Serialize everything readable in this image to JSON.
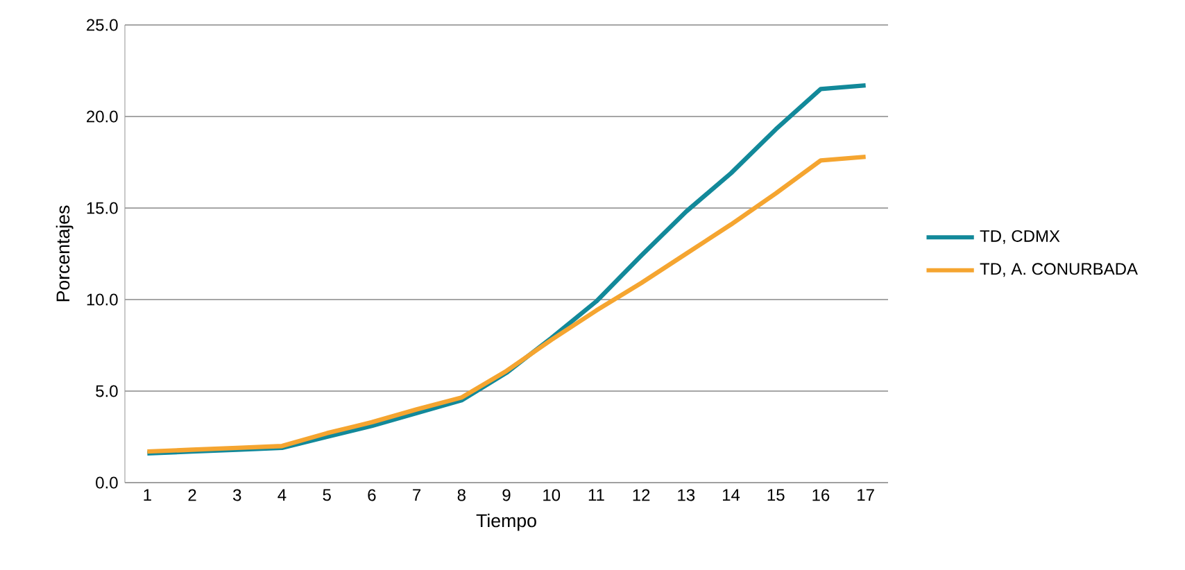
{
  "chart_data": {
    "type": "line",
    "xlabel": "Tiempo",
    "ylabel": "Porcentajes",
    "categories": [
      "1",
      "2",
      "3",
      "4",
      "5",
      "6",
      "7",
      "8",
      "9",
      "10",
      "11",
      "12",
      "13",
      "14",
      "15",
      "16",
      "17"
    ],
    "series": [
      {
        "name": "TD, CDMX",
        "color": "#12899a",
        "values": [
          1.6,
          1.7,
          1.8,
          1.9,
          2.5,
          3.1,
          3.8,
          4.5,
          6.0,
          7.9,
          9.9,
          12.4,
          14.8,
          16.9,
          19.3,
          21.5,
          21.7
        ]
      },
      {
        "name": "TD, A. CONURBADA",
        "color": "#f5a530",
        "values": [
          1.7,
          1.8,
          1.9,
          2.0,
          2.7,
          3.3,
          4.0,
          4.65,
          6.1,
          7.8,
          9.4,
          10.9,
          12.5,
          14.1,
          15.8,
          17.6,
          17.8
        ]
      }
    ],
    "ylim": [
      0,
      25
    ],
    "yticks": [
      {
        "value": 0,
        "label": "0.0"
      },
      {
        "value": 5,
        "label": "5.0"
      },
      {
        "value": 10,
        "label": "10.0"
      },
      {
        "value": 15,
        "label": "15.0"
      },
      {
        "value": 20,
        "label": "20.0"
      },
      {
        "value": 25,
        "label": "25.0"
      }
    ],
    "grid": "y",
    "legend": "right",
    "marker": "none",
    "line_style": "solid"
  }
}
